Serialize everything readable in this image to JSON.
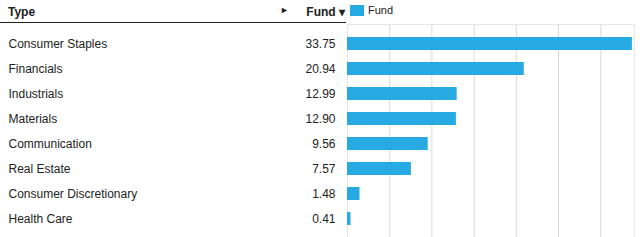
{
  "chart_data": {
    "type": "bar",
    "orientation": "horizontal",
    "y_label": "Type",
    "x_label": "Fund ▾",
    "annotations": [
      "►"
    ],
    "categories": [
      "Consumer Staples",
      "Financials",
      "Industrials",
      "Materials",
      "Communication",
      "Real Estate",
      "Consumer Discretionary",
      "Health Care"
    ],
    "series": [
      {
        "name": "Fund",
        "color": "#27aae1",
        "values": [
          33.75,
          20.94,
          12.99,
          12.9,
          9.56,
          7.57,
          1.48,
          0.41
        ],
        "value_labels": [
          "33.75",
          "20.94",
          "12.99",
          "12.90",
          "9.56",
          "7.57",
          "1.48",
          "0.41"
        ]
      }
    ],
    "xlim": [
      0,
      34
    ],
    "xticks": [
      0,
      5,
      10,
      15,
      20,
      25,
      30
    ],
    "grid": true,
    "legend": "top",
    "data_labels": true,
    "tick_labels": false
  }
}
